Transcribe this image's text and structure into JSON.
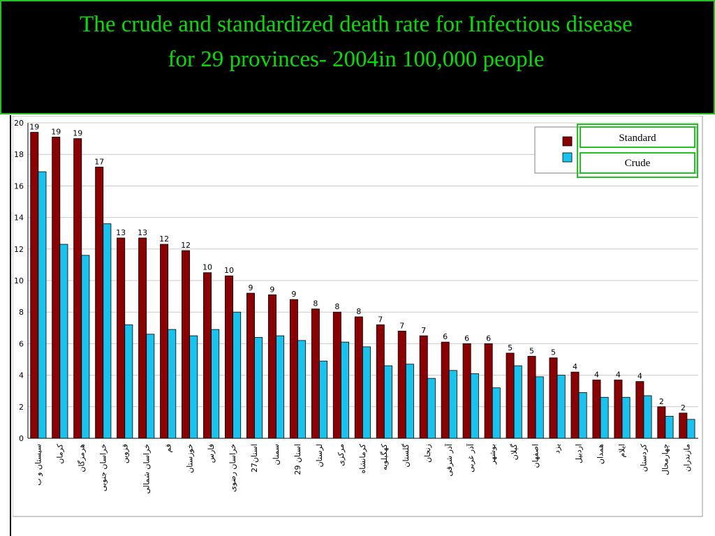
{
  "chart_data": {
    "type": "bar",
    "title_line1": "The crude and standardized death rate for Infectious disease",
    "title_line2": "for 29 provinces- 2004in 100,000 people",
    "ylim": [
      0,
      20
    ],
    "yticks": [
      "0",
      "2",
      "4",
      "6",
      "8",
      "10",
      "12",
      "14",
      "16",
      "18",
      "20"
    ],
    "grid": true,
    "legend_position": "top-right",
    "categories": [
      "سیستان و ب",
      "کرمان",
      "هرمزگان",
      "خراسان جنوبی",
      "قزوین",
      "خراسان شمالی",
      "قم",
      "خوزستان",
      "فارس",
      "خراسان رضوی",
      "27استان",
      "سمنان",
      "29 استان",
      "لرستان",
      "مرکزی",
      "کرمانشاه",
      "کهگیلویه",
      "گلستان",
      "زنجان",
      "آذر شرقی",
      "آذر غربی",
      "بوشهر",
      "گیلان",
      "اصفهان",
      "یزد",
      "اردبیل",
      "همدان",
      "ایلام",
      "کردستان",
      "چهارمحال",
      "مازندران"
    ],
    "series": [
      {
        "name": "Standard",
        "color": "#8b0000",
        "values": [
          19.4,
          19.1,
          19.0,
          17.2,
          12.7,
          12.7,
          12.3,
          11.9,
          10.5,
          10.3,
          9.2,
          9.1,
          8.8,
          8.2,
          8.0,
          7.7,
          7.2,
          6.8,
          6.5,
          6.1,
          6.0,
          6.0,
          5.4,
          5.2,
          5.1,
          4.2,
          3.7,
          3.7,
          3.6,
          2.0,
          1.6
        ]
      },
      {
        "name": "Crude",
        "color": "#16c4ef",
        "values": [
          16.9,
          12.3,
          11.6,
          13.6,
          7.2,
          6.6,
          6.9,
          6.5,
          6.9,
          8.0,
          6.4,
          6.5,
          6.2,
          4.9,
          6.1,
          5.8,
          4.6,
          4.7,
          3.8,
          4.3,
          4.1,
          3.2,
          4.6,
          3.9,
          4.0,
          2.9,
          2.6,
          2.6,
          2.7,
          1.4,
          1.2
        ]
      }
    ],
    "data_labels": [
      "19",
      "19",
      "19",
      "17",
      "13",
      "13",
      "12",
      "12",
      "10",
      "10",
      "9",
      "9",
      "9",
      "8",
      "8",
      "8",
      "7",
      "7",
      "7",
      "6",
      "6",
      "6",
      "5",
      "5",
      "5",
      "4",
      "4",
      "4",
      "4",
      "2",
      "2"
    ]
  }
}
